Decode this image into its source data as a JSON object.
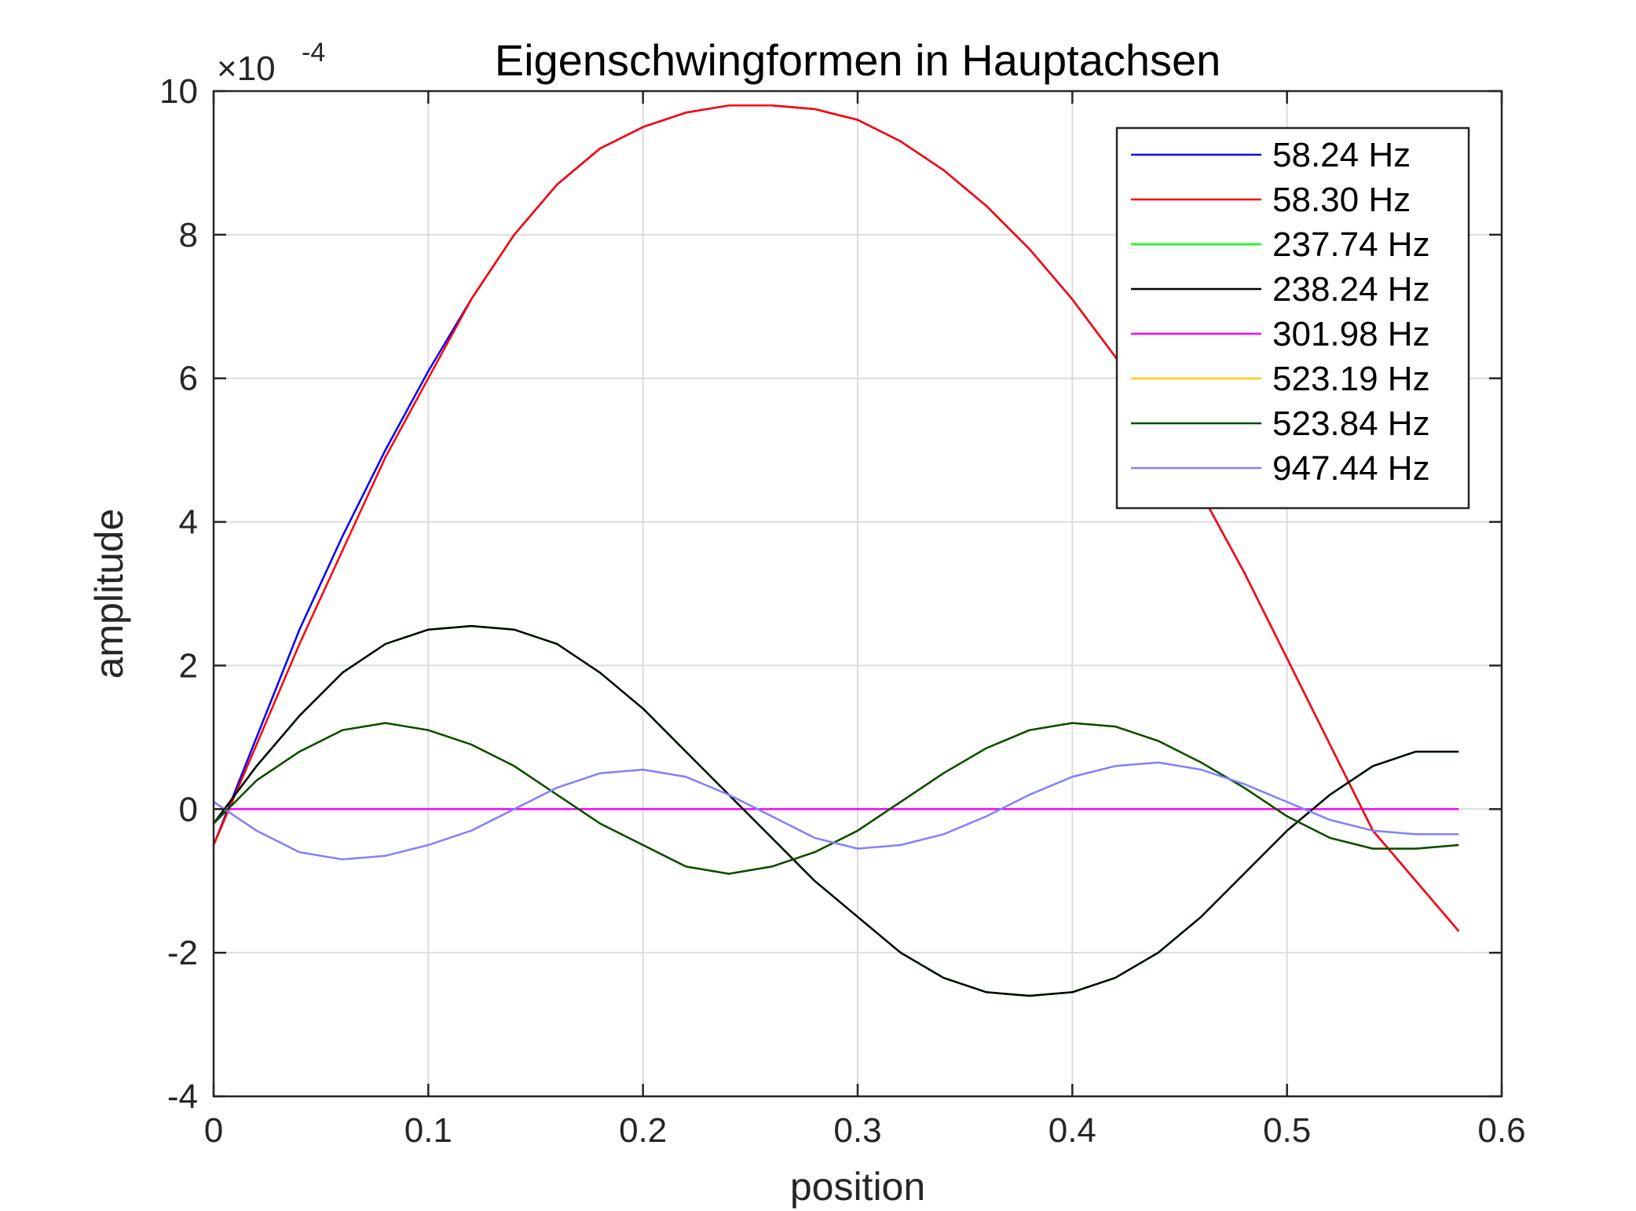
{
  "chart_data": {
    "type": "line",
    "title": "Eigenschwingformen in Hauptachsen",
    "xlabel": "position",
    "ylabel": "amplitude",
    "xlim": [
      0,
      0.6
    ],
    "ylim": [
      -4,
      10
    ],
    "y_scale_multiplier": "×10",
    "y_scale_exponent": "-4",
    "x_ticks": [
      "0",
      "0.1",
      "0.2",
      "0.3",
      "0.4",
      "0.5",
      "0.6"
    ],
    "y_ticks": [
      "-4",
      "-2",
      "0",
      "2",
      "4",
      "6",
      "8",
      "10"
    ],
    "grid": true,
    "legend_position": "top-right",
    "x": [
      0,
      0.02,
      0.04,
      0.06,
      0.08,
      0.1,
      0.12,
      0.14,
      0.16,
      0.18,
      0.2,
      0.22,
      0.24,
      0.26,
      0.28,
      0.3,
      0.32,
      0.34,
      0.36,
      0.38,
      0.4,
      0.42,
      0.44,
      0.46,
      0.48,
      0.5,
      0.52,
      0.54,
      0.56,
      0.58
    ],
    "series": [
      {
        "name": "58.24 Hz",
        "color": "#0000ff",
        "values": [
          -0.5,
          1.0,
          2.5,
          3.8,
          5.0,
          6.1,
          7.1,
          8.0,
          8.7,
          9.2,
          9.5,
          9.7,
          9.8,
          9.8,
          9.75,
          9.6,
          9.3,
          8.9,
          8.4,
          7.8,
          7.1,
          6.3,
          5.4,
          4.4,
          3.3,
          2.1,
          0.9,
          -0.3,
          -1.0,
          -1.7
        ]
      },
      {
        "name": "58.30 Hz",
        "color": "#ff0000",
        "values": [
          -0.5,
          0.9,
          2.3,
          3.6,
          4.9,
          6.0,
          7.1,
          8.0,
          8.7,
          9.2,
          9.5,
          9.7,
          9.8,
          9.8,
          9.75,
          9.6,
          9.3,
          8.9,
          8.4,
          7.8,
          7.1,
          6.3,
          5.4,
          4.4,
          3.3,
          2.1,
          0.9,
          -0.3,
          -1.0,
          -1.7
        ]
      },
      {
        "name": "237.74 Hz",
        "color": "#00ff00",
        "values": [
          -0.2,
          0.6,
          1.3,
          1.9,
          2.3,
          2.5,
          2.55,
          2.5,
          2.3,
          1.9,
          1.4,
          0.8,
          0.2,
          -0.4,
          -1.0,
          -1.5,
          -2.0,
          -2.35,
          -2.55,
          -2.6,
          -2.55,
          -2.35,
          -2.0,
          -1.5,
          -0.9,
          -0.3,
          0.2,
          0.6,
          0.8,
          0.8
        ]
      },
      {
        "name": "238.24 Hz",
        "color": "#000000",
        "values": [
          -0.2,
          0.6,
          1.3,
          1.9,
          2.3,
          2.5,
          2.55,
          2.5,
          2.3,
          1.9,
          1.4,
          0.8,
          0.2,
          -0.4,
          -1.0,
          -1.5,
          -2.0,
          -2.35,
          -2.55,
          -2.6,
          -2.55,
          -2.35,
          -2.0,
          -1.5,
          -0.9,
          -0.3,
          0.2,
          0.6,
          0.8,
          0.8
        ]
      },
      {
        "name": "301.98 Hz",
        "color": "#ff00ff",
        "values": [
          0,
          0,
          0,
          0,
          0,
          0,
          0,
          0,
          0,
          0,
          0,
          0,
          0,
          0,
          0,
          0,
          0,
          0,
          0,
          0,
          0,
          0,
          0,
          0,
          0,
          0,
          0,
          0,
          0,
          0
        ]
      },
      {
        "name": "523.19 Hz",
        "color": "#ffcc00",
        "values": [
          -0.2,
          0.4,
          0.8,
          1.1,
          1.2,
          1.1,
          0.9,
          0.6,
          0.2,
          -0.2,
          -0.5,
          -0.8,
          -0.9,
          -0.8,
          -0.6,
          -0.3,
          0.1,
          0.5,
          0.85,
          1.1,
          1.2,
          1.15,
          0.95,
          0.65,
          0.3,
          -0.1,
          -0.4,
          -0.55,
          -0.55,
          -0.5
        ]
      },
      {
        "name": "523.84 Hz",
        "color": "#004d00",
        "values": [
          -0.2,
          0.4,
          0.8,
          1.1,
          1.2,
          1.1,
          0.9,
          0.6,
          0.2,
          -0.2,
          -0.5,
          -0.8,
          -0.9,
          -0.8,
          -0.6,
          -0.3,
          0.1,
          0.5,
          0.85,
          1.1,
          1.2,
          1.15,
          0.95,
          0.65,
          0.3,
          -0.1,
          -0.4,
          -0.55,
          -0.55,
          -0.5
        ]
      },
      {
        "name": "947.44 Hz",
        "color": "#8080ff",
        "values": [
          0.1,
          -0.3,
          -0.6,
          -0.7,
          -0.65,
          -0.5,
          -0.3,
          0.0,
          0.3,
          0.5,
          0.55,
          0.45,
          0.2,
          -0.1,
          -0.4,
          -0.55,
          -0.5,
          -0.35,
          -0.1,
          0.2,
          0.45,
          0.6,
          0.65,
          0.55,
          0.35,
          0.1,
          -0.15,
          -0.3,
          -0.35,
          -0.35
        ]
      }
    ]
  }
}
